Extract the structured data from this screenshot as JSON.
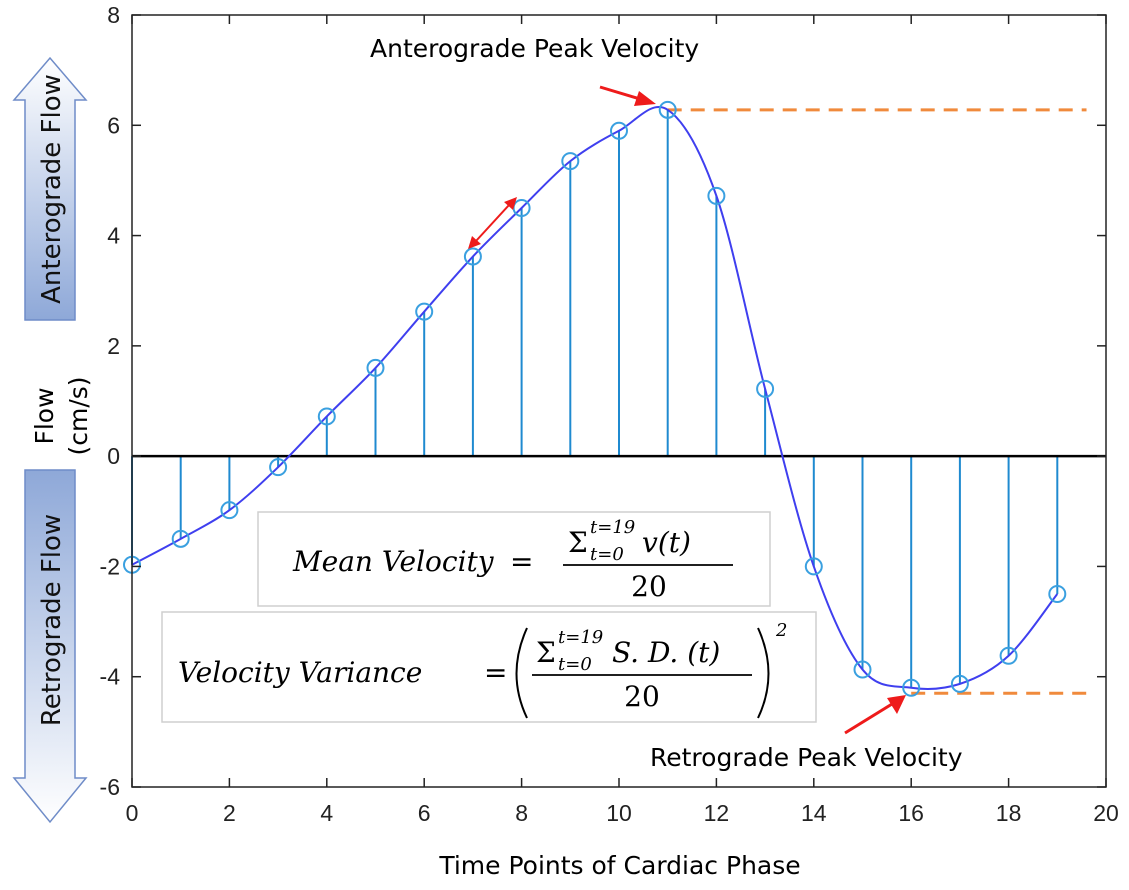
{
  "chart_data": {
    "type": "line",
    "title": "",
    "xlabel": "Time Points of Cardiac Phase",
    "ylabel_line1": "Flow",
    "ylabel_line2": "(cm/s)",
    "xlim": [
      0,
      20
    ],
    "ylim": [
      -6,
      8
    ],
    "xticks": [
      "0",
      "2",
      "4",
      "6",
      "8",
      "10",
      "12",
      "14",
      "16",
      "18",
      "20"
    ],
    "yticks": [
      "8",
      "6",
      "4",
      "2",
      "0",
      "-2",
      "-4",
      "-6"
    ],
    "grid": false,
    "series": [
      {
        "x": [
          0,
          1,
          2,
          3,
          4,
          5,
          6,
          7,
          8,
          9,
          10,
          11,
          12,
          13,
          14,
          15,
          16,
          17,
          18,
          19
        ],
        "values": [
          -1.97,
          -1.5,
          -0.98,
          -0.2,
          0.72,
          1.6,
          2.62,
          3.62,
          4.5,
          5.35,
          5.9,
          6.28,
          4.72,
          1.22,
          -2.0,
          -3.87,
          -4.2,
          -4.13,
          -3.62,
          -2.5
        ]
      }
    ],
    "reference_lines": [
      {
        "y": 6.28,
        "x_from": 11,
        "x_to": 19.6
      },
      {
        "y": -4.3,
        "x_from": 16,
        "x_to": 19.6
      }
    ],
    "annotations": {
      "anterograde_peak": "Anterograde Peak Velocity",
      "retrograde_peak": "Retrograde Peak Velocity"
    },
    "side_arrows": {
      "up": "Anterograde Flow",
      "down": "Retrograde Flow"
    },
    "formulas": {
      "mean_lhs": "Mean Velocity",
      "mean_sum_sub": "t=0",
      "mean_sum_sup": "t=19",
      "mean_term": "v(t)",
      "mean_den": "20",
      "var_lhs": "Velocity Variance",
      "var_sum_sub": "t=0",
      "var_sum_sup": "t=19",
      "var_term": "S. D. (t)",
      "var_den": "20",
      "var_power": "2"
    },
    "colors": {
      "line": "#3f3fef",
      "stem": "#1f8ad0",
      "marker": "#3aa0e0",
      "reference": "#f08a3c",
      "annotation_arrow": "#ee1b1b",
      "side_arrow_fill": "#9db3dc",
      "side_arrow_stroke": "#6f8cc8"
    }
  }
}
